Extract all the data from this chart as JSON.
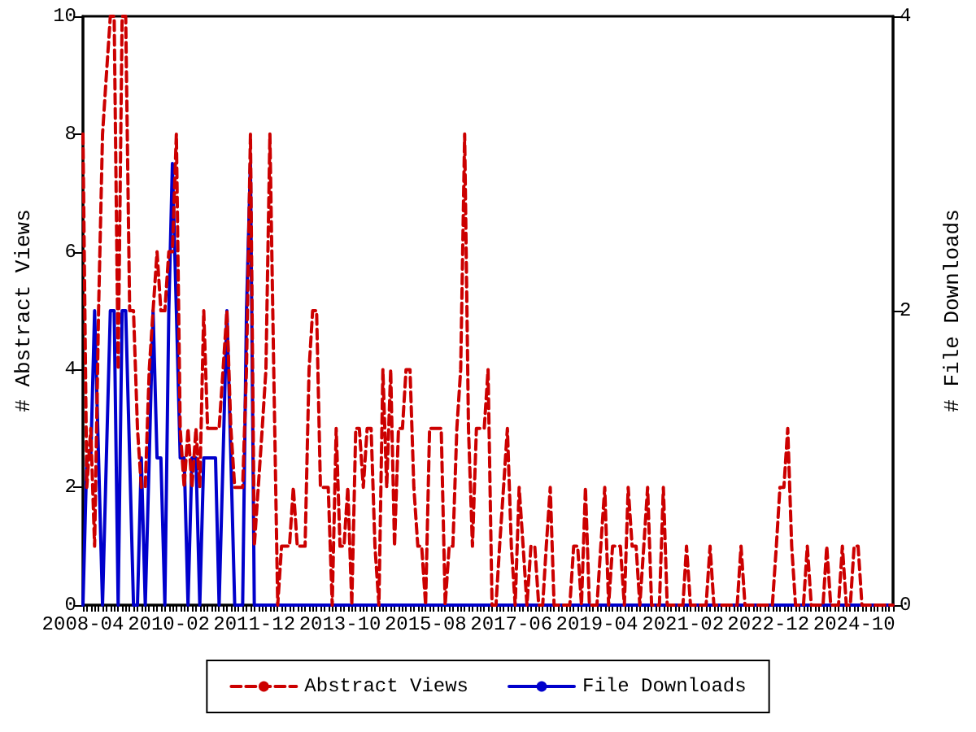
{
  "chart_data": {
    "type": "line",
    "ylabel": "# Abstract Views",
    "y2label": "# File Downloads",
    "x": [
      "2008-04",
      "2008-05",
      "2008-06",
      "2008-07",
      "2008-08",
      "2008-09",
      "2008-10",
      "2008-11",
      "2008-12",
      "2009-01",
      "2009-02",
      "2009-03",
      "2009-04",
      "2009-05",
      "2009-06",
      "2009-07",
      "2009-08",
      "2009-09",
      "2009-10",
      "2009-11",
      "2009-12",
      "2010-01",
      "2010-02",
      "2010-03",
      "2010-04",
      "2010-05",
      "2010-06",
      "2010-07",
      "2010-08",
      "2010-09",
      "2010-10",
      "2010-11",
      "2010-12",
      "2011-01",
      "2011-02",
      "2011-03",
      "2011-04",
      "2011-05",
      "2011-06",
      "2011-07",
      "2011-08",
      "2011-09",
      "2011-10",
      "2011-11",
      "2011-12",
      "2012-01",
      "2012-02",
      "2012-03",
      "2012-04",
      "2012-05",
      "2012-06",
      "2012-07",
      "2012-08",
      "2012-09",
      "2012-10",
      "2012-11",
      "2012-12",
      "2013-01",
      "2013-02",
      "2013-03",
      "2013-04",
      "2013-05",
      "2013-06",
      "2013-07",
      "2013-08",
      "2013-09",
      "2013-10",
      "2013-11",
      "2013-12",
      "2014-01",
      "2014-02",
      "2014-03",
      "2014-04",
      "2014-05",
      "2014-06",
      "2014-07",
      "2014-08",
      "2014-09",
      "2014-10",
      "2014-11",
      "2014-12",
      "2015-01",
      "2015-02",
      "2015-03",
      "2015-04",
      "2015-05",
      "2015-06",
      "2015-07",
      "2015-08",
      "2015-09",
      "2015-10",
      "2015-11",
      "2015-12",
      "2016-01",
      "2016-02",
      "2016-03",
      "2016-04",
      "2016-05",
      "2016-06",
      "2016-07",
      "2016-08",
      "2016-09",
      "2016-10",
      "2016-11",
      "2016-12",
      "2017-01",
      "2017-02",
      "2017-03",
      "2017-04",
      "2017-05",
      "2017-06",
      "2017-07",
      "2017-08",
      "2017-09",
      "2017-10",
      "2017-11",
      "2017-12",
      "2018-01",
      "2018-02",
      "2018-03",
      "2018-04",
      "2018-05",
      "2018-06",
      "2018-07",
      "2018-08",
      "2018-09",
      "2018-10",
      "2018-11",
      "2018-12",
      "2019-01",
      "2019-02",
      "2019-03",
      "2019-04",
      "2019-05",
      "2019-06",
      "2019-07",
      "2019-08",
      "2019-09",
      "2019-10",
      "2019-11",
      "2019-12",
      "2020-01",
      "2020-02",
      "2020-03",
      "2020-04",
      "2020-05",
      "2020-06",
      "2020-07",
      "2020-08",
      "2020-09",
      "2020-10",
      "2020-11",
      "2020-12",
      "2021-01",
      "2021-02",
      "2021-03",
      "2021-04",
      "2021-05",
      "2021-06",
      "2021-07",
      "2021-08",
      "2021-09",
      "2021-10",
      "2021-11",
      "2021-12",
      "2022-01",
      "2022-02",
      "2022-03",
      "2022-04",
      "2022-05",
      "2022-06",
      "2022-07",
      "2022-08",
      "2022-09",
      "2022-10",
      "2022-11",
      "2022-12",
      "2023-01",
      "2023-02",
      "2023-03",
      "2023-04",
      "2023-05",
      "2023-06",
      "2023-07",
      "2023-08",
      "2023-09",
      "2023-10",
      "2023-11",
      "2023-12",
      "2024-01",
      "2024-02",
      "2024-03",
      "2024-04",
      "2024-05",
      "2024-06",
      "2024-07",
      "2024-08",
      "2024-09",
      "2024-10",
      "2024-11",
      "2024-12",
      "2025-01",
      "2025-02",
      "2025-03",
      "2025-04",
      "2025-05",
      "2025-06",
      "2025-07",
      "2025-08"
    ],
    "series": [
      {
        "name": "Abstract Views",
        "color": "#cc0000",
        "line_style": "dashed",
        "values": [
          8,
          2,
          3,
          1,
          5,
          8,
          9,
          10,
          10,
          4,
          10,
          10,
          5,
          5,
          3,
          2,
          2,
          4,
          5,
          6,
          5,
          5,
          6,
          6,
          8,
          3,
          2,
          3,
          2,
          3,
          2,
          5,
          3,
          3,
          3,
          3,
          4,
          5,
          3,
          2,
          2,
          2,
          4,
          8,
          1,
          2,
          3,
          4,
          8,
          4,
          0,
          1,
          1,
          1,
          2,
          1,
          1,
          1,
          4,
          5,
          5,
          2,
          2,
          2,
          0,
          3,
          1,
          1,
          2,
          0,
          3,
          3,
          2,
          3,
          3,
          1,
          0,
          4,
          2,
          4,
          1,
          3,
          3,
          4,
          4,
          2,
          1,
          1,
          0,
          3,
          3,
          3,
          3,
          0,
          1,
          1,
          3,
          4,
          8,
          3,
          1,
          3,
          3,
          3,
          4,
          0,
          0,
          1,
          2,
          3,
          1,
          0,
          2,
          1,
          0,
          1,
          1,
          0,
          0,
          1,
          2,
          0,
          0,
          0,
          0,
          0,
          1,
          1,
          0,
          2,
          0,
          0,
          0,
          1,
          2,
          0,
          1,
          1,
          1,
          0,
          2,
          1,
          1,
          0,
          1,
          2,
          0,
          0,
          0,
          2,
          0,
          0,
          0,
          0,
          0,
          1,
          0,
          0,
          0,
          0,
          0,
          1,
          0,
          0,
          0,
          0,
          0,
          0,
          0,
          1,
          0,
          0,
          0,
          0,
          0,
          0,
          0,
          0,
          1,
          2,
          2,
          3,
          1,
          0,
          0,
          0,
          1,
          0,
          0,
          0,
          0,
          1,
          0,
          0,
          0,
          1,
          0,
          0,
          1,
          1,
          0,
          0,
          0,
          0,
          0,
          0,
          0,
          0,
          0
        ]
      },
      {
        "name": "File Downloads",
        "color": "#0000cc",
        "line_style": "solid",
        "axis": "y2",
        "x": [
          "2008-04",
          "2008-05",
          "2008-06",
          "2008-07",
          "2008-08",
          "2008-09",
          "2008-10",
          "2008-11",
          "2008-12",
          "2009-01",
          "2009-02",
          "2009-03",
          "2009-04",
          "2009-05",
          "2009-06",
          "2009-07",
          "2009-08",
          "2009-09",
          "2009-10",
          "2009-11",
          "2009-12",
          "2010-01",
          "2010-02",
          "2010-03",
          "2010-04",
          "2010-05",
          "2010-06",
          "2010-07",
          "2010-08",
          "2010-09",
          "2010-10",
          "2010-11",
          "2010-12",
          "2011-01",
          "2011-02",
          "2011-03",
          "2011-04",
          "2011-05",
          "2011-06",
          "2011-07",
          "2011-08",
          "2011-09",
          "2011-10",
          "2011-11",
          "2011-12",
          "2012-01",
          "2025-08"
        ],
        "values": [
          0,
          1,
          1,
          2,
          1,
          0,
          1,
          2,
          2,
          0,
          2,
          2,
          1,
          0,
          0,
          1,
          0,
          1,
          2,
          1,
          1,
          0,
          2,
          3,
          2,
          1,
          1,
          0,
          1,
          1,
          0,
          1,
          1,
          1,
          1,
          0,
          1,
          2,
          1,
          0,
          0,
          0,
          2,
          3,
          0,
          0,
          0
        ]
      }
    ],
    "xlim": [
      "2008-04",
      "2025-08"
    ],
    "xticks": [
      "2008-04",
      "2010-02",
      "2011-12",
      "2013-10",
      "2015-08",
      "2017-06",
      "2019-04",
      "2021-02",
      "2022-12",
      "2024-10"
    ],
    "ylim": [
      0,
      10
    ],
    "yticks": [
      0,
      2,
      4,
      6,
      8,
      10
    ],
    "y2lim": [
      0,
      4
    ],
    "y2ticks": [
      0,
      2,
      4
    ],
    "grid": false,
    "legend": "bottom",
    "marker": "none"
  }
}
